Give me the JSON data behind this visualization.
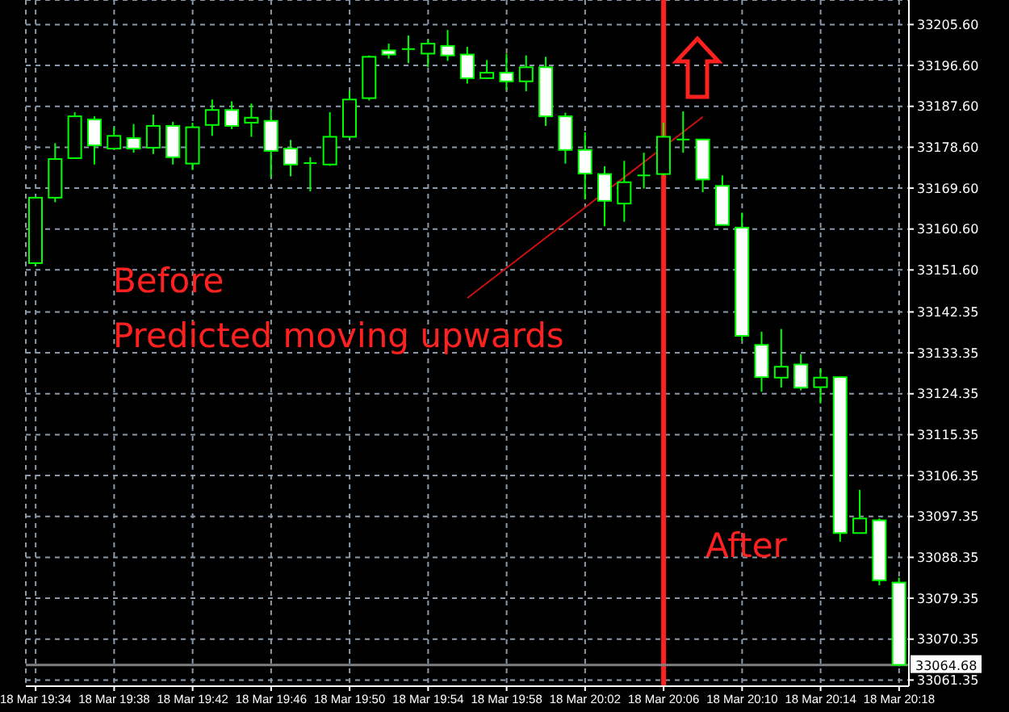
{
  "chart_data": {
    "type": "candlestick",
    "annotations": [
      "Before",
      "Predicted moving upwards",
      "After"
    ],
    "categories": [
      "18 Mar 19:34",
      null,
      null,
      null,
      "18 Mar 19:38",
      null,
      null,
      null,
      "18 Mar 19:42",
      null,
      null,
      null,
      "18 Mar 19:46",
      null,
      null,
      null,
      "18 Mar 19:50",
      null,
      null,
      null,
      "18 Mar 19:54",
      null,
      null,
      null,
      "18 Mar 19:58",
      null,
      null,
      null,
      "18 Mar 20:02",
      null,
      null,
      null,
      "18 Mar 20:06",
      null,
      null,
      null,
      "18 Mar 20:10",
      null,
      null,
      null,
      "18 Mar 20:14",
      null,
      null,
      null,
      "18 Mar 20:18"
    ],
    "ohlc": [
      [
        33153.1,
        33167.5,
        33152.4,
        33167.5
      ],
      [
        33167.5,
        33179.5,
        33166.5,
        33176.0
      ],
      [
        33176.2,
        33186.3,
        33176.0,
        33185.4
      ],
      [
        33184.7,
        33185.4,
        33174.8,
        33179.0
      ],
      [
        33178.3,
        33183.0,
        33178.1,
        33181.1
      ],
      [
        33180.6,
        33183.7,
        33177.4,
        33178.3
      ],
      [
        33178.5,
        33185.8,
        33177.1,
        33183.3
      ],
      [
        33183.3,
        33184.2,
        33174.8,
        33176.4
      ],
      [
        33175.0,
        33184.0,
        33173.6,
        33183.0
      ],
      [
        33183.5,
        33189.1,
        33181.1,
        33186.8
      ],
      [
        33186.8,
        33188.7,
        33182.6,
        33183.3
      ],
      [
        33184.0,
        33188.2,
        33180.9,
        33185.1
      ],
      [
        33184.4,
        33186.8,
        33172.0,
        33177.8
      ],
      [
        33178.3,
        33180.2,
        33172.2,
        33174.8
      ],
      [
        33175.1,
        33176.4,
        33168.9,
        33175.1
      ],
      [
        33174.8,
        33186.3,
        33174.5,
        33180.9
      ],
      [
        33180.9,
        33191.0,
        33180.6,
        33189.1
      ],
      [
        33189.4,
        33198.8,
        33188.9,
        33198.5
      ],
      [
        33199.9,
        33201.4,
        33198.1,
        33199.0
      ],
      [
        33200.2,
        33203.2,
        33197.1,
        33200.2
      ],
      [
        33199.2,
        33202.3,
        33196.2,
        33201.4
      ],
      [
        33200.9,
        33204.4,
        33197.6,
        33198.8
      ],
      [
        33199.0,
        33200.7,
        33192.6,
        33193.8
      ],
      [
        33193.8,
        33197.8,
        33193.6,
        33195.0
      ],
      [
        33195.0,
        33199.2,
        33191.2,
        33193.1
      ],
      [
        33193.1,
        33198.8,
        33190.9,
        33196.2
      ],
      [
        33196.2,
        33198.5,
        33183.3,
        33185.4
      ],
      [
        33185.4,
        33186.2,
        33175.0,
        33178.0
      ],
      [
        33178.0,
        33181.9,
        33167.1,
        33172.8
      ],
      [
        33172.7,
        33174.4,
        33161.2,
        33166.8
      ],
      [
        33166.2,
        33175.6,
        33162.2,
        33170.9
      ],
      [
        33172.4,
        33177.4,
        33169.5,
        33172.4
      ],
      [
        33172.7,
        33184.0,
        33172.4,
        33180.9
      ],
      [
        33180.3,
        33186.5,
        33177.4,
        33180.3
      ],
      [
        33180.3,
        33180.3,
        33168.7,
        33171.5
      ],
      [
        33170.1,
        33172.4,
        33161.5,
        33161.5
      ],
      [
        33160.9,
        33164.2,
        33136.0,
        33137.1
      ],
      [
        33135.1,
        33138.0,
        33124.8,
        33128.0
      ],
      [
        33127.9,
        33138.6,
        33125.7,
        33130.3
      ],
      [
        33130.8,
        33133.1,
        33125.1,
        33125.7
      ],
      [
        33125.8,
        33129.8,
        33122.2,
        33127.9
      ],
      [
        33128.0,
        33128.0,
        33091.8,
        33093.7
      ],
      [
        33093.7,
        33103.2,
        33093.7,
        33096.9
      ],
      [
        33096.5,
        33096.9,
        33082.2,
        33083.3
      ],
      [
        33082.8,
        33083.9,
        33064.4,
        33064.68
      ]
    ],
    "color": "#00ff00",
    "series": [
      {
        "type": "line",
        "values": [
          null,
          null,
          null,
          null,
          null,
          null,
          null,
          null,
          null,
          null,
          null,
          null,
          null,
          null,
          null,
          null,
          null,
          null,
          null,
          null,
          null,
          null,
          33145.4,
          null,
          null,
          null,
          null,
          null,
          null,
          null,
          null,
          null,
          null,
          null,
          33185.3,
          null,
          null,
          null,
          null,
          null,
          null,
          null,
          null,
          null,
          null
        ],
        "color": "#cc1010"
      }
    ],
    "ylim": [
      33060,
      33211
    ],
    "yticks": [
      {
        "value": 33205.6,
        "label": "33205.60"
      },
      {
        "value": 33196.6,
        "label": "33196.60"
      },
      {
        "value": 33187.6,
        "label": "33187.60"
      },
      {
        "value": 33178.6,
        "label": "33178.60"
      },
      {
        "value": 33169.6,
        "label": "33169.60"
      },
      {
        "value": 33160.6,
        "label": "33160.60"
      },
      {
        "value": 33151.6,
        "label": "33151.60"
      },
      33142.35,
      33133.35,
      33124.35,
      33115.35,
      33106.35,
      33097.35,
      33088.35,
      33079.35,
      33070.35,
      33061.35
    ],
    "ref_lines": [
      {
        "axis": "x",
        "value": "18 Mar 20:06",
        "color": "#ff2020"
      },
      {
        "axis": "y",
        "value": 33064.68,
        "label": "33064.68",
        "color": "#808080"
      }
    ],
    "grid": true
  }
}
